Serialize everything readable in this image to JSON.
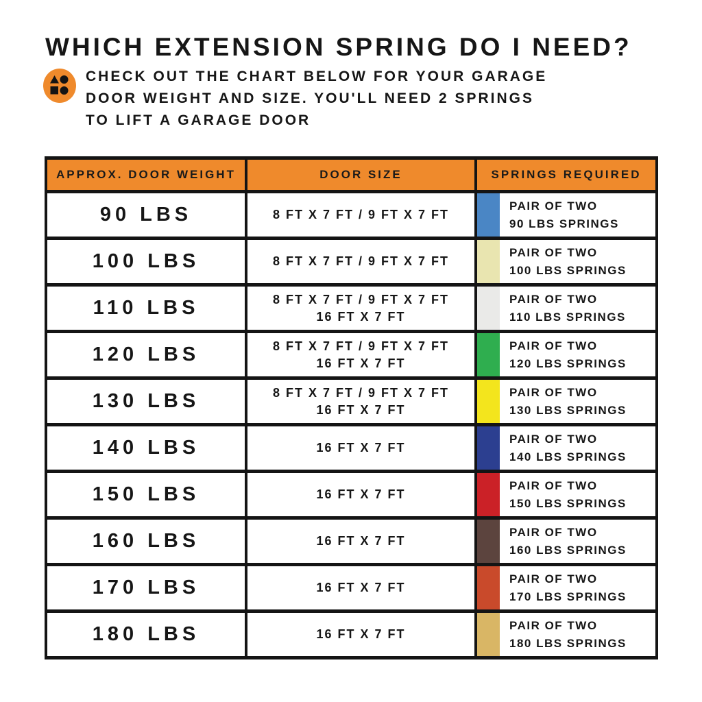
{
  "page": {
    "title": "WHICH EXTENSION SPRING DO I NEED?",
    "subtitle_lines": [
      "CHECK OUT THE CHART BELOW FOR YOUR GARAGE",
      "DOOR WEIGHT AND SIZE. YOU'LL NEED 2 SPRINGS",
      "TO LIFT A GARAGE DOOR"
    ]
  },
  "colors": {
    "accent_orange": "#EF8A2C",
    "border_black": "#141414"
  },
  "icons": {
    "intro_badge": "shapes-icon"
  },
  "table": {
    "headers": [
      "APPROX. DOOR WEIGHT",
      "DOOR SIZE",
      "SPRINGS REQUIRED"
    ],
    "rows": [
      {
        "weight": "90 LBS",
        "door_size_lines": [
          "8 FT X 7 FT / 9 FT X 7 FT"
        ],
        "springs_lines": [
          "PAIR OF TWO",
          "90 LBS SPRINGS"
        ],
        "swatch_color": "#4A86C5"
      },
      {
        "weight": "100 LBS",
        "door_size_lines": [
          "8 FT X 7 FT / 9 FT X 7 FT"
        ],
        "springs_lines": [
          "PAIR OF TWO",
          "100 LBS SPRINGS"
        ],
        "swatch_color": "#E9E5B0"
      },
      {
        "weight": "110 LBS",
        "door_size_lines": [
          "8 FT X 7 FT / 9 FT X 7 FT",
          "16 FT X 7 FT"
        ],
        "springs_lines": [
          "PAIR OF TWO",
          "110 LBS SPRINGS"
        ],
        "swatch_color": "#EAEAE8"
      },
      {
        "weight": "120 LBS",
        "door_size_lines": [
          "8 FT X 7 FT / 9 FT X 7 FT",
          "16 FT X 7 FT"
        ],
        "springs_lines": [
          "PAIR OF TWO",
          "120 LBS SPRINGS"
        ],
        "swatch_color": "#2FAE4F"
      },
      {
        "weight": "130 LBS",
        "door_size_lines": [
          "8 FT X 7 FT / 9 FT X 7 FT",
          "16 FT X 7 FT"
        ],
        "springs_lines": [
          "PAIR OF TWO",
          "130 LBS SPRINGS"
        ],
        "swatch_color": "#F3E51D"
      },
      {
        "weight": "140 LBS",
        "door_size_lines": [
          "16 FT X 7 FT"
        ],
        "springs_lines": [
          "PAIR OF TWO",
          "140 LBS SPRINGS"
        ],
        "swatch_color": "#2C3F90"
      },
      {
        "weight": "150 LBS",
        "door_size_lines": [
          "16 FT X 7 FT"
        ],
        "springs_lines": [
          "PAIR OF TWO",
          "150 LBS SPRINGS"
        ],
        "swatch_color": "#CB2127"
      },
      {
        "weight": "160 LBS",
        "door_size_lines": [
          "16 FT X 7 FT"
        ],
        "springs_lines": [
          "PAIR OF TWO",
          "160 LBS SPRINGS"
        ],
        "swatch_color": "#5C443E"
      },
      {
        "weight": "170 LBS",
        "door_size_lines": [
          "16 FT X 7 FT"
        ],
        "springs_lines": [
          "PAIR OF TWO",
          "170 LBS SPRINGS"
        ],
        "swatch_color": "#C94A2B"
      },
      {
        "weight": "180 LBS",
        "door_size_lines": [
          "16 FT X 7 FT"
        ],
        "springs_lines": [
          "PAIR OF TWO",
          "180 LBS SPRINGS"
        ],
        "swatch_color": "#D9B665"
      }
    ]
  },
  "chart_data": {
    "type": "table",
    "title": "WHICH EXTENSION SPRING DO I NEED?",
    "columns": [
      "APPROX. DOOR WEIGHT",
      "DOOR SIZE",
      "SPRINGS REQUIRED"
    ],
    "rows": [
      [
        "90 LBS",
        "8 FT X 7 FT / 9 FT X 7 FT",
        "PAIR OF TWO 90 LBS SPRINGS"
      ],
      [
        "100 LBS",
        "8 FT X 7 FT / 9 FT X 7 FT",
        "PAIR OF TWO 100 LBS SPRINGS"
      ],
      [
        "110 LBS",
        "8 FT X 7 FT / 9 FT X 7 FT, 16 FT X 7 FT",
        "PAIR OF TWO 110 LBS SPRINGS"
      ],
      [
        "120 LBS",
        "8 FT X 7 FT / 9 FT X 7 FT, 16 FT X 7 FT",
        "PAIR OF TWO 120 LBS SPRINGS"
      ],
      [
        "130 LBS",
        "8 FT X 7 FT / 9 FT X 7 FT, 16 FT X 7 FT",
        "PAIR OF TWO 130 LBS SPRINGS"
      ],
      [
        "140 LBS",
        "16 FT X 7 FT",
        "PAIR OF TWO 140 LBS SPRINGS"
      ],
      [
        "150 LBS",
        "16 FT X 7 FT",
        "PAIR OF TWO 150 LBS SPRINGS"
      ],
      [
        "160 LBS",
        "16 FT X 7 FT",
        "PAIR OF TWO 160 LBS SPRINGS"
      ],
      [
        "170 LBS",
        "16 FT X 7 FT",
        "PAIR OF TWO 170 LBS SPRINGS"
      ],
      [
        "180 LBS",
        "16 FT X 7 FT",
        "PAIR OF TWO 180 LBS SPRINGS"
      ]
    ]
  }
}
